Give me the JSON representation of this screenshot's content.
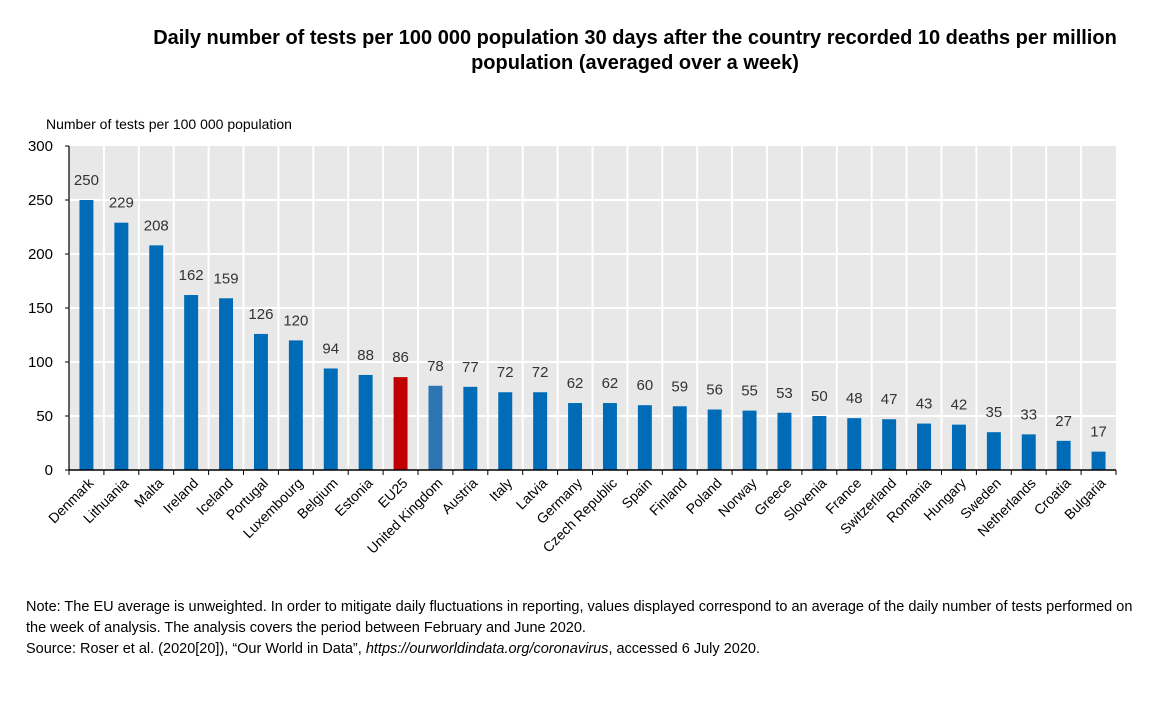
{
  "notes": {
    "note": "Note: The EU average is unweighted. In order to mitigate daily fluctuations in reporting, values displayed correspond to an average of the daily number of tests performed on the week of analysis. The analysis covers the period between February and June 2020.",
    "source_prefix": "Source: Roser et al. (2020[20]), “Our World in Data”, ",
    "source_url": "https://ourworldindata.org/coronavirus",
    "source_suffix": ", accessed 6 July 2020."
  },
  "chart_data": {
    "type": "bar",
    "title": "Daily number of tests per 100 000 population 30 days after the country recorded 10 deaths per million population (averaged over a week)",
    "ylabel": "Number of tests per 100 000 population",
    "xlabel": "",
    "ylim": [
      0,
      300
    ],
    "yticks": [
      0,
      50,
      100,
      150,
      200,
      250,
      300
    ],
    "grid": true,
    "categories": [
      "Denmark",
      "Lithuania",
      "Malta",
      "Ireland",
      "Iceland",
      "Portugal",
      "Luxembourg",
      "Belgium",
      "Estonia",
      "EU25",
      "United Kingdom",
      "Austria",
      "Italy",
      "Latvia",
      "Germany",
      "Czech Republic",
      "Spain",
      "Finland",
      "Poland",
      "Norway",
      "Greece",
      "Slovenia",
      "France",
      "Switzerland",
      "Romania",
      "Hungary",
      "Sweden",
      "Netherlands",
      "Croatia",
      "Bulgaria"
    ],
    "values": [
      250,
      229,
      208,
      162,
      159,
      126,
      120,
      94,
      88,
      86,
      78,
      77,
      72,
      72,
      62,
      62,
      60,
      59,
      56,
      55,
      53,
      50,
      48,
      47,
      43,
      42,
      35,
      33,
      27,
      17
    ],
    "colors": {
      "default": "#006bb6",
      "highlight_EU25": "#c00000",
      "highlight_United_Kingdom": "#2e75b6",
      "plot_background": "#e8e8e8",
      "gridline": "#ffffff",
      "label_text": "#333333"
    }
  }
}
